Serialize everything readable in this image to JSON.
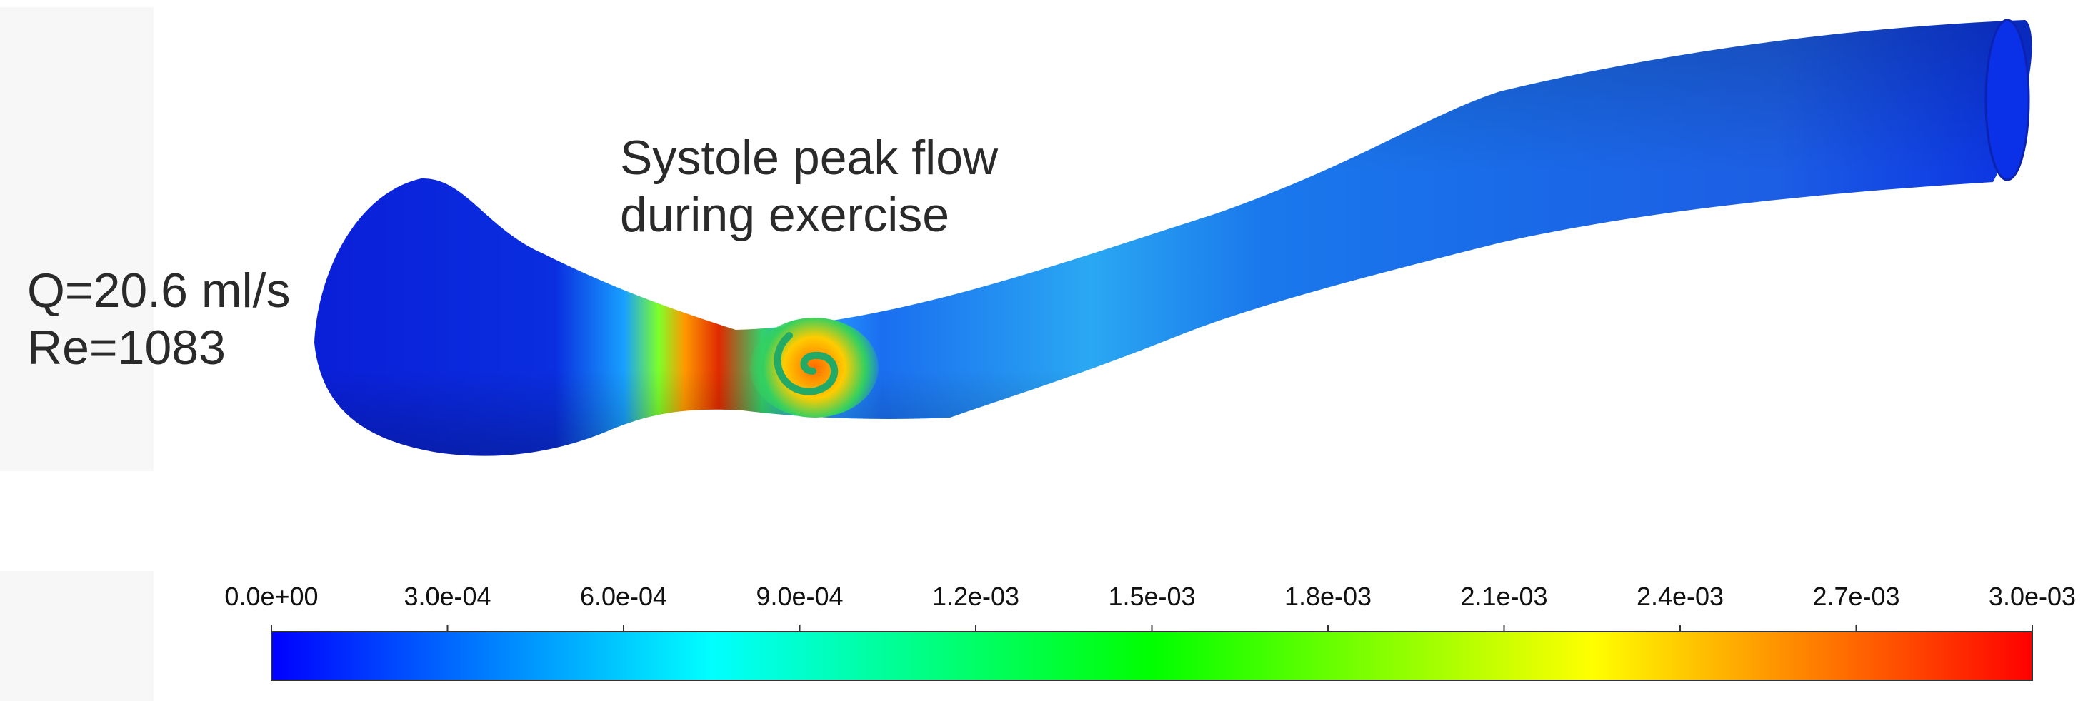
{
  "annotation": {
    "title_line1": "Systole peak flow",
    "title_line2": "during exercise",
    "flow_rate": "Q=20.6 ml/s",
    "reynolds": "Re=1083"
  },
  "colorbar": {
    "ticks": [
      "0.0e+00",
      "3.0e-04",
      "6.0e-04",
      "9.0e-04",
      "1.2e-03",
      "1.5e-03",
      "1.8e-03",
      "2.1e-03",
      "2.4e-03",
      "2.7e-03",
      "3.0e-03"
    ],
    "min": 0.0,
    "max": 0.003,
    "colors": [
      "#0000ff",
      "#00ffff",
      "#00ff00",
      "#ffff00",
      "#ff0000"
    ]
  },
  "vessel": {
    "body_color": "#0a2ee0",
    "hotspot_color": "#e02a00"
  }
}
